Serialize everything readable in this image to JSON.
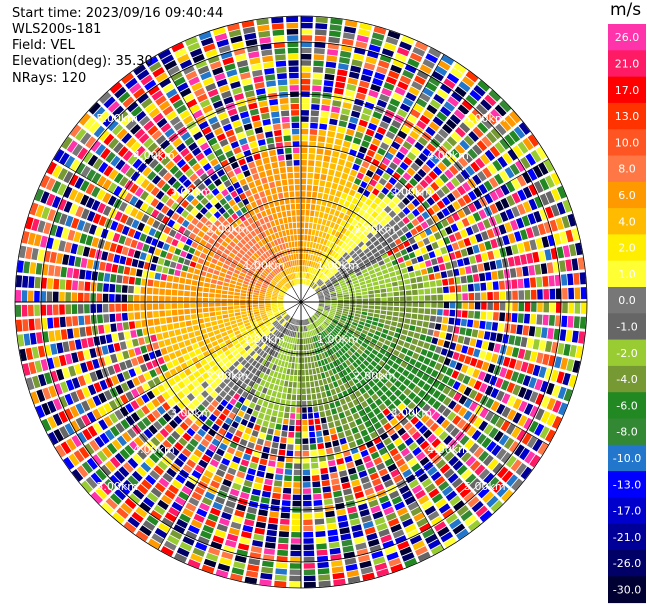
{
  "header": {
    "start_time": "Start time: 2023/09/16 09:40:44",
    "instrument": "WLS200s-181",
    "field": "Field: VEL",
    "elevation": "Elevation(deg): 35.30",
    "nrays": "NRays: 120"
  },
  "colorbar": {
    "unit": "m/s",
    "ticks": [
      "26.0",
      "21.0",
      "17.0",
      "13.0",
      "10.0",
      "8.0",
      "6.0",
      "4.0",
      "2.0",
      "1.0",
      "0.0",
      "-1.0",
      "-2.0",
      "-4.0",
      "-6.0",
      "-8.0",
      "-10.0",
      "-13.0",
      "-17.0",
      "-21.0",
      "-26.0",
      "-30.0"
    ],
    "colors": [
      "#ff33aa",
      "#ff1a66",
      "#ff0000",
      "#ff3300",
      "#ff5522",
      "#ff7744",
      "#ff9900",
      "#ffbb00",
      "#ffee00",
      "#ffff33",
      "#777777",
      "#666666",
      "#99cc33",
      "#779933",
      "#228822",
      "#338833",
      "#2277cc",
      "#0000ff",
      "#0000cc",
      "#000099",
      "#000066",
      "#000033"
    ]
  },
  "chart_data": {
    "type": "heatmap",
    "projection": "polar",
    "field": "VEL",
    "nrays": 120,
    "elevation_deg": 35.3,
    "range_ring_labels": [
      "1.00km",
      "2.00km",
      "3.00km",
      "4.00km",
      "5.00km"
    ],
    "max_range_km": 5.5,
    "pattern": {
      "clean_range_km": 2.6,
      "positive_azimuth_deg": 315,
      "zero_ring_km": 0.65
    }
  }
}
